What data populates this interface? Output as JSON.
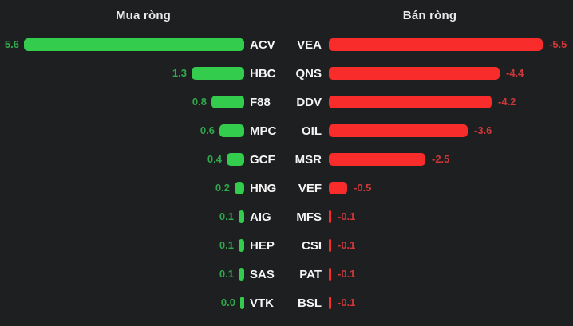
{
  "colors": {
    "background": "#1e1f21",
    "header_text": "#eaeaea",
    "ticker_text": "#f5f5f5",
    "buy_bar": "#33cc4d",
    "buy_value_text": "#30a84c",
    "sell_bar": "#f92c2c",
    "sell_value_text": "#cd3838"
  },
  "chart_data": {
    "type": "bar",
    "orientation": "horizontal",
    "layout_hint": "tornado chart: buy panel left with right-aligned bars, sell panel right with left-aligned bars, tickers in the middle",
    "grid": false,
    "legend": "none",
    "value_axis_range": [
      -5.6,
      5.6
    ],
    "panels": [
      {
        "title": "Mua ròng",
        "side": "buy",
        "bar_color": "#33cc4d",
        "value_color": "#30a84c",
        "items": [
          {
            "ticker": "ACV",
            "value": 5.6,
            "label": "5.6"
          },
          {
            "ticker": "HBC",
            "value": 1.3,
            "label": "1.3"
          },
          {
            "ticker": "F88",
            "value": 0.8,
            "label": "0.8"
          },
          {
            "ticker": "MPC",
            "value": 0.6,
            "label": "0.6"
          },
          {
            "ticker": "GCF",
            "value": 0.4,
            "label": "0.4"
          },
          {
            "ticker": "HNG",
            "value": 0.2,
            "label": "0.2"
          },
          {
            "ticker": "AIG",
            "value": 0.1,
            "label": "0.1"
          },
          {
            "ticker": "HEP",
            "value": 0.1,
            "label": "0.1"
          },
          {
            "ticker": "SAS",
            "value": 0.1,
            "label": "0.1"
          },
          {
            "ticker": "VTK",
            "value": 0.0,
            "label": "0.0"
          }
        ]
      },
      {
        "title": "Bán ròng",
        "side": "sell",
        "bar_color": "#f92c2c",
        "value_color": "#cd3838",
        "items": [
          {
            "ticker": "VEA",
            "value": -5.5,
            "label": "-5.5"
          },
          {
            "ticker": "QNS",
            "value": -4.4,
            "label": "-4.4"
          },
          {
            "ticker": "DDV",
            "value": -4.2,
            "label": "-4.2"
          },
          {
            "ticker": "OIL",
            "value": -3.6,
            "label": "-3.6"
          },
          {
            "ticker": "MSR",
            "value": -2.5,
            "label": "-2.5"
          },
          {
            "ticker": "VEF",
            "value": -0.5,
            "label": "-0.5"
          },
          {
            "ticker": "MFS",
            "value": -0.1,
            "label": "-0.1"
          },
          {
            "ticker": "CSI",
            "value": -0.1,
            "label": "-0.1"
          },
          {
            "ticker": "PAT",
            "value": -0.1,
            "label": "-0.1"
          },
          {
            "ticker": "BSL",
            "value": -0.1,
            "label": "-0.1"
          }
        ]
      }
    ]
  }
}
